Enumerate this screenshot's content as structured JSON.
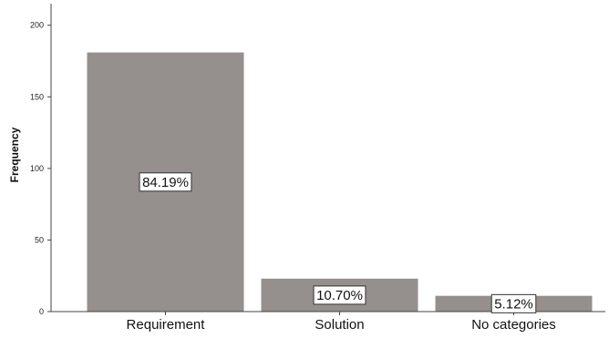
{
  "chart_data": {
    "type": "bar",
    "categories": [
      "Requirement",
      "Solution",
      "No categories"
    ],
    "values": [
      181,
      23,
      11
    ],
    "data_labels": [
      "84.19%",
      "10.70%",
      "5.12%"
    ],
    "ylabel": "Frequency",
    "ylim": [
      0,
      210
    ],
    "yticks": [
      0,
      50,
      100,
      150,
      200
    ],
    "ytick_labels": [
      "0",
      "50",
      "100",
      "150",
      "200"
    ],
    "grid": false,
    "legend": "none",
    "colors": {
      "bar": "#958f8d",
      "axis": "#444444",
      "label_box_border": "#333333",
      "label_box_fill": "#ffffff"
    }
  }
}
